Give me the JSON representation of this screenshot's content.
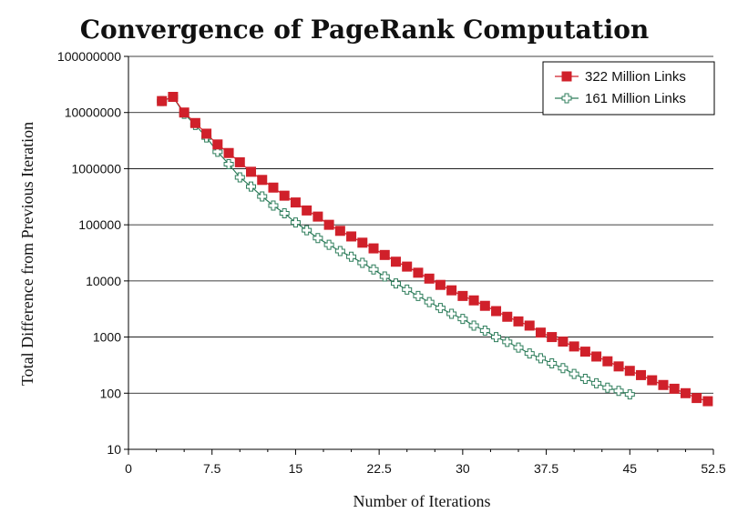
{
  "chart_data": {
    "type": "line",
    "title": "Convergence of PageRank Computation",
    "xlabel": "Number of Iterations",
    "ylabel": "Total Difference from Previous Iteration",
    "xlim": [
      0,
      52.5
    ],
    "ylim": [
      10,
      100000000
    ],
    "y_scale": "log",
    "grid": "horizontal",
    "legend_position": "top-right",
    "x_ticks": [
      "0",
      "7.5",
      "15",
      "22.5",
      "30",
      "37.5",
      "45",
      "52.5"
    ],
    "y_ticks": [
      "10",
      "100",
      "1000",
      "10000",
      "100000",
      "1000000",
      "10000000",
      "100000000"
    ],
    "series": [
      {
        "name": "322 Million Links",
        "color": "#d0202a",
        "marker": "square",
        "x": [
          3,
          4,
          5,
          6,
          7,
          8,
          9,
          10,
          11,
          12,
          13,
          14,
          15,
          16,
          17,
          18,
          19,
          20,
          21,
          22,
          23,
          24,
          25,
          26,
          27,
          28,
          29,
          30,
          31,
          32,
          33,
          34,
          35,
          36,
          37,
          38,
          39,
          40,
          41,
          42,
          43,
          44,
          45,
          46,
          47,
          48,
          49,
          50,
          51,
          52
        ],
        "y": [
          16000000,
          19000000,
          10000000,
          6500000,
          4200000,
          2700000,
          1900000,
          1300000,
          880000,
          630000,
          460000,
          330000,
          250000,
          180000,
          140000,
          100000,
          78000,
          62000,
          48000,
          38000,
          29000,
          22000,
          18000,
          14000,
          11000,
          8500,
          6800,
          5400,
          4500,
          3600,
          2900,
          2300,
          1900,
          1600,
          1200,
          1000,
          830,
          680,
          550,
          450,
          370,
          300,
          250,
          210,
          170,
          140,
          120,
          100,
          82,
          72
        ]
      },
      {
        "name": "161 Million Links",
        "color": "#2e7d5b",
        "marker": "cross",
        "x": [
          3,
          4,
          5,
          6,
          7,
          8,
          9,
          10,
          11,
          12,
          13,
          14,
          15,
          16,
          17,
          18,
          19,
          20,
          21,
          22,
          23,
          24,
          25,
          26,
          27,
          28,
          29,
          30,
          31,
          32,
          33,
          34,
          35,
          36,
          37,
          38,
          39,
          40,
          41,
          42,
          43,
          44,
          45
        ],
        "y": [
          16000000,
          19000000,
          9500000,
          6000000,
          3600000,
          2000000,
          1200000,
          700000,
          480000,
          320000,
          220000,
          160000,
          110000,
          80000,
          58000,
          44000,
          34000,
          27000,
          21000,
          16000,
          12000,
          9000,
          7000,
          5400,
          4200,
          3300,
          2600,
          2100,
          1600,
          1300,
          1000,
          820,
          650,
          510,
          420,
          340,
          280,
          220,
          180,
          150,
          125,
          110,
          95
        ]
      }
    ]
  }
}
